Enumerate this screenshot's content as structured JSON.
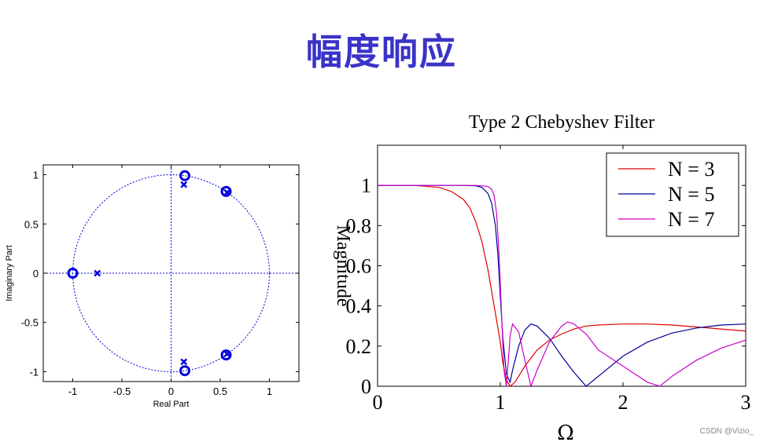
{
  "slide": {
    "title": "幅度响应"
  },
  "watermark": "CSDN @Vizio_",
  "chart_data": [
    {
      "type": "scatter",
      "subtype": "pole-zero-plot",
      "title": "",
      "xlabel": "Real Part",
      "ylabel": "Imaginary Part",
      "xlim": [
        -1.3,
        1.3
      ],
      "ylim": [
        -1.1,
        1.1
      ],
      "xticks": [
        -1,
        -0.5,
        0,
        0.5,
        1
      ],
      "xtick_labels": [
        "-1",
        "-0.5",
        "0",
        "0.5",
        "1"
      ],
      "yticks": [
        1,
        0.5,
        0,
        -0.5,
        -1
      ],
      "ytick_labels": [
        "1",
        "0.5",
        "0",
        "-0.5",
        "-1"
      ],
      "unit_circle": true,
      "color": "#0000dd",
      "zeros": [
        [
          -1,
          0
        ],
        [
          0.14,
          0.99
        ],
        [
          0.14,
          -0.99
        ],
        [
          0.56,
          0.83
        ],
        [
          0.56,
          -0.83
        ]
      ],
      "poles": [
        [
          -0.75,
          0
        ],
        [
          0.13,
          0.9
        ],
        [
          0.13,
          -0.9
        ],
        [
          0.57,
          0.82
        ],
        [
          0.57,
          -0.82
        ]
      ]
    },
    {
      "type": "line",
      "title": "Type 2 Chebyshev Filter",
      "xlabel": "Ω",
      "ylabel": "Magnitude",
      "xlim": [
        0,
        3
      ],
      "ylim": [
        0,
        1.2
      ],
      "xticks": [
        0,
        1,
        2,
        3
      ],
      "xtick_labels": [
        "0",
        "1",
        "2",
        "3"
      ],
      "yticks": [
        0,
        0.2,
        0.4,
        0.6,
        0.8,
        1
      ],
      "ytick_labels": [
        "0",
        "0.2",
        "0.4",
        "0.6",
        "0.8",
        "1"
      ],
      "legend_position": "top-right",
      "series": [
        {
          "name": "N = 3",
          "color": "#dd0000",
          "x": [
            0,
            0.3,
            0.5,
            0.6,
            0.7,
            0.75,
            0.8,
            0.85,
            0.9,
            0.95,
            1.0,
            1.02,
            1.05,
            1.08,
            1.12,
            1.2,
            1.3,
            1.4,
            1.5,
            1.6,
            1.7,
            1.8,
            2.0,
            2.2,
            2.4,
            2.6,
            2.8,
            3.0
          ],
          "y": [
            1,
            1,
            0.99,
            0.97,
            0.93,
            0.89,
            0.82,
            0.72,
            0.58,
            0.4,
            0.22,
            0.12,
            0.03,
            0.0,
            0.02,
            0.1,
            0.18,
            0.23,
            0.26,
            0.285,
            0.3,
            0.305,
            0.31,
            0.31,
            0.305,
            0.295,
            0.285,
            0.275
          ]
        },
        {
          "name": "N = 5",
          "color": "#000099",
          "x": [
            0,
            0.5,
            0.7,
            0.8,
            0.85,
            0.9,
            0.93,
            0.96,
            0.98,
            1.0,
            1.02,
            1.05,
            1.08,
            1.1,
            1.15,
            1.2,
            1.25,
            1.3,
            1.4,
            1.5,
            1.6,
            1.7,
            1.8,
            2.0,
            2.2,
            2.4,
            2.6,
            2.8,
            3.0
          ],
          "y": [
            1,
            1,
            1,
            0.998,
            0.99,
            0.96,
            0.91,
            0.8,
            0.66,
            0.45,
            0.25,
            0.06,
            0.02,
            0.08,
            0.2,
            0.28,
            0.31,
            0.3,
            0.24,
            0.15,
            0.07,
            0.0,
            0.05,
            0.15,
            0.22,
            0.265,
            0.29,
            0.305,
            0.31
          ]
        },
        {
          "name": "N = 7",
          "color": "#cc00cc",
          "x": [
            0,
            0.8,
            0.9,
            0.93,
            0.95,
            0.97,
            0.99,
            1.01,
            1.03,
            1.05,
            1.08,
            1.1,
            1.15,
            1.2,
            1.25,
            1.3,
            1.4,
            1.5,
            1.55,
            1.6,
            1.7,
            1.8,
            2.0,
            2.2,
            2.3,
            2.4,
            2.6,
            2.8,
            3.0
          ],
          "y": [
            1,
            1,
            0.995,
            0.98,
            0.95,
            0.86,
            0.66,
            0.36,
            0.08,
            0.0,
            0.25,
            0.31,
            0.27,
            0.13,
            0.0,
            0.08,
            0.22,
            0.3,
            0.32,
            0.31,
            0.26,
            0.18,
            0.1,
            0.02,
            0.0,
            0.05,
            0.13,
            0.19,
            0.23
          ]
        }
      ]
    }
  ]
}
